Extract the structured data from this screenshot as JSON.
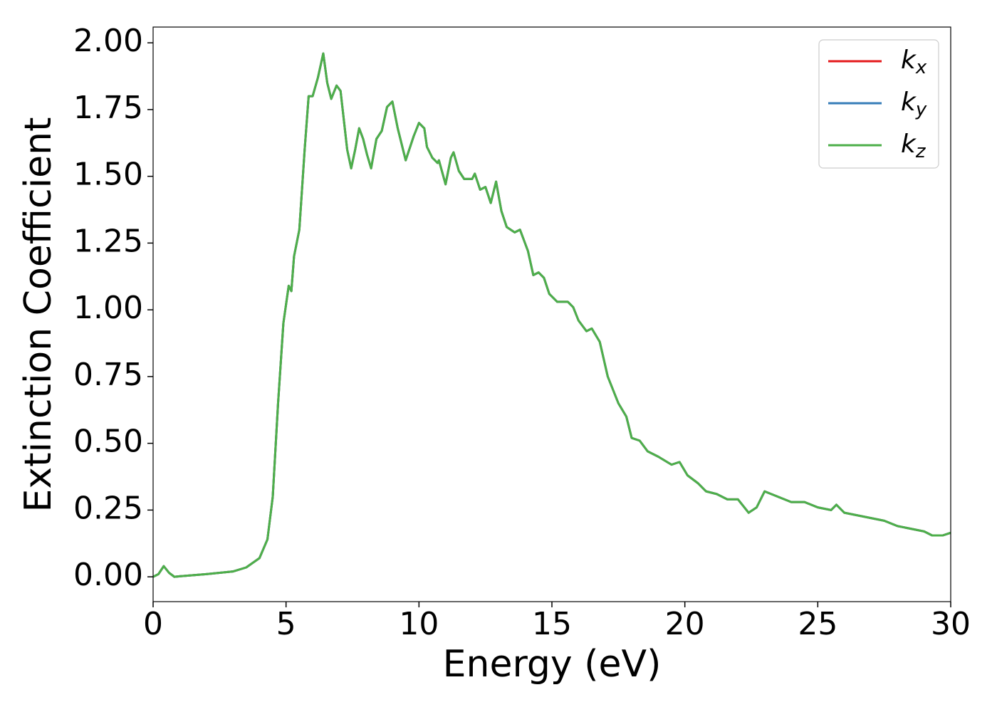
{
  "chart_data": {
    "type": "line",
    "xlabel": "Energy (eV)",
    "ylabel": "Extinction Coefficient",
    "x": [
      0,
      0.2,
      0.4,
      0.6,
      0.8,
      1.0,
      2,
      3,
      3.5,
      4.0,
      4.3,
      4.5,
      4.7,
      4.9,
      5.1,
      5.2,
      5.3,
      5.5,
      5.7,
      5.85,
      6.0,
      6.2,
      6.4,
      6.55,
      6.7,
      6.9,
      7.05,
      7.3,
      7.45,
      7.6,
      7.75,
      7.9,
      8.05,
      8.2,
      8.4,
      8.6,
      8.8,
      9.0,
      9.2,
      9.5,
      9.8,
      10.0,
      10.2,
      10.3,
      10.5,
      10.7,
      10.75,
      11.0,
      11.2,
      11.3,
      11.5,
      11.7,
      12.0,
      12.1,
      12.3,
      12.5,
      12.7,
      12.9,
      13.1,
      13.3,
      13.6,
      13.8,
      14.1,
      14.3,
      14.5,
      14.7,
      14.9,
      15.2,
      15.6,
      15.8,
      16.0,
      16.3,
      16.5,
      16.8,
      17.1,
      17.5,
      17.8,
      18.0,
      18.3,
      18.6,
      19.0,
      19.5,
      19.8,
      20.1,
      20.5,
      20.8,
      21.2,
      21.6,
      22.0,
      22.4,
      22.7,
      23.0,
      23.5,
      24.0,
      24.5,
      25.0,
      25.5,
      25.7,
      26.0,
      26.5,
      27.0,
      27.5,
      28.0,
      28.5,
      29.0,
      29.3,
      29.7,
      30.0
    ],
    "series": [
      {
        "name": "k_x",
        "color": "#e41a1c",
        "values": [
          0.0,
          0.01,
          0.04,
          0.015,
          0.0,
          0.002,
          0.01,
          0.02,
          0.035,
          0.07,
          0.14,
          0.3,
          0.65,
          0.95,
          1.09,
          1.07,
          1.2,
          1.3,
          1.6,
          1.8,
          1.8,
          1.87,
          1.96,
          1.85,
          1.79,
          1.84,
          1.82,
          1.6,
          1.53,
          1.6,
          1.68,
          1.64,
          1.58,
          1.53,
          1.64,
          1.67,
          1.76,
          1.78,
          1.68,
          1.56,
          1.65,
          1.7,
          1.68,
          1.61,
          1.57,
          1.55,
          1.56,
          1.47,
          1.57,
          1.59,
          1.52,
          1.49,
          1.49,
          1.51,
          1.45,
          1.46,
          1.4,
          1.48,
          1.37,
          1.31,
          1.29,
          1.3,
          1.22,
          1.13,
          1.14,
          1.12,
          1.06,
          1.03,
          1.03,
          1.01,
          0.96,
          0.92,
          0.93,
          0.88,
          0.75,
          0.65,
          0.6,
          0.52,
          0.51,
          0.47,
          0.45,
          0.42,
          0.43,
          0.38,
          0.35,
          0.32,
          0.31,
          0.29,
          0.29,
          0.24,
          0.26,
          0.32,
          0.3,
          0.28,
          0.28,
          0.26,
          0.25,
          0.27,
          0.24,
          0.23,
          0.22,
          0.21,
          0.19,
          0.18,
          0.17,
          0.155,
          0.155,
          0.165
        ]
      },
      {
        "name": "k_y",
        "color": "#377eb8",
        "values": [
          0.0,
          0.01,
          0.04,
          0.015,
          0.0,
          0.002,
          0.01,
          0.02,
          0.035,
          0.07,
          0.14,
          0.3,
          0.65,
          0.95,
          1.09,
          1.07,
          1.2,
          1.3,
          1.6,
          1.8,
          1.8,
          1.87,
          1.96,
          1.85,
          1.79,
          1.84,
          1.82,
          1.6,
          1.53,
          1.6,
          1.68,
          1.64,
          1.58,
          1.53,
          1.64,
          1.67,
          1.76,
          1.78,
          1.68,
          1.56,
          1.65,
          1.7,
          1.68,
          1.61,
          1.57,
          1.55,
          1.56,
          1.47,
          1.57,
          1.59,
          1.52,
          1.49,
          1.49,
          1.51,
          1.45,
          1.46,
          1.4,
          1.48,
          1.37,
          1.31,
          1.29,
          1.3,
          1.22,
          1.13,
          1.14,
          1.12,
          1.06,
          1.03,
          1.03,
          1.01,
          0.96,
          0.92,
          0.93,
          0.88,
          0.75,
          0.65,
          0.6,
          0.52,
          0.51,
          0.47,
          0.45,
          0.42,
          0.43,
          0.38,
          0.35,
          0.32,
          0.31,
          0.29,
          0.29,
          0.24,
          0.26,
          0.32,
          0.3,
          0.28,
          0.28,
          0.26,
          0.25,
          0.27,
          0.24,
          0.23,
          0.22,
          0.21,
          0.19,
          0.18,
          0.17,
          0.155,
          0.155,
          0.165
        ]
      },
      {
        "name": "k_z",
        "color": "#4daf4a",
        "values": [
          0.0,
          0.01,
          0.04,
          0.015,
          0.0,
          0.002,
          0.01,
          0.02,
          0.035,
          0.07,
          0.14,
          0.3,
          0.65,
          0.95,
          1.09,
          1.07,
          1.2,
          1.3,
          1.6,
          1.8,
          1.8,
          1.87,
          1.96,
          1.85,
          1.79,
          1.84,
          1.82,
          1.6,
          1.53,
          1.6,
          1.68,
          1.64,
          1.58,
          1.53,
          1.64,
          1.67,
          1.76,
          1.78,
          1.68,
          1.56,
          1.65,
          1.7,
          1.68,
          1.61,
          1.57,
          1.55,
          1.56,
          1.47,
          1.57,
          1.59,
          1.52,
          1.49,
          1.49,
          1.51,
          1.45,
          1.46,
          1.4,
          1.48,
          1.37,
          1.31,
          1.29,
          1.3,
          1.22,
          1.13,
          1.14,
          1.12,
          1.06,
          1.03,
          1.03,
          1.01,
          0.96,
          0.92,
          0.93,
          0.88,
          0.75,
          0.65,
          0.6,
          0.52,
          0.51,
          0.47,
          0.45,
          0.42,
          0.43,
          0.38,
          0.35,
          0.32,
          0.31,
          0.29,
          0.29,
          0.24,
          0.26,
          0.32,
          0.3,
          0.28,
          0.28,
          0.26,
          0.25,
          0.27,
          0.24,
          0.23,
          0.22,
          0.21,
          0.19,
          0.18,
          0.17,
          0.155,
          0.155,
          0.165
        ]
      }
    ],
    "xlim": [
      0,
      30
    ],
    "xticks": [
      0,
      5,
      10,
      15,
      20,
      25,
      30
    ],
    "ylim": [
      -0.093,
      2.059
    ],
    "yticks": [
      {
        "value": 0,
        "label": "0.00"
      },
      {
        "value": 0.25,
        "label": "0.25"
      },
      {
        "value": 0.5,
        "label": "0.50"
      },
      {
        "value": 0.75,
        "label": "0.75"
      },
      {
        "value": 1,
        "label": "1.00"
      },
      {
        "value": 1.25,
        "label": "1.25"
      },
      {
        "value": 1.5,
        "label": "1.50"
      },
      {
        "value": 1.75,
        "label": "1.75"
      },
      {
        "value": 2,
        "label": "2.00"
      }
    ],
    "grid": false,
    "legend": "upper right"
  }
}
